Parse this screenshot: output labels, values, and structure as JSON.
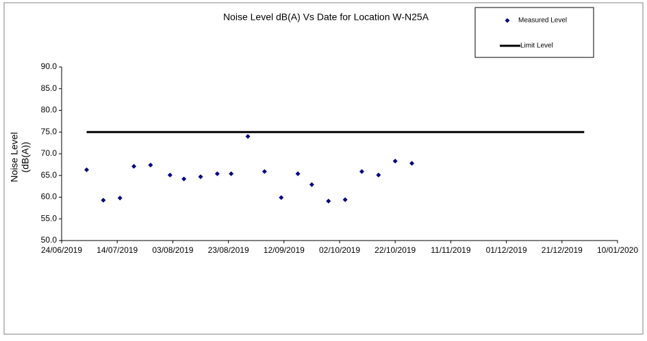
{
  "chart_data": {
    "type": "scatter",
    "title": "Noise Level dB(A) Vs Date for Location W-N25A",
    "y_label": [
      "Noise Level",
      "(dB(A))"
    ],
    "xlim": [
      "24/06/2019",
      "10/01/2020"
    ],
    "xticks": [
      "24/06/2019",
      "14/07/2019",
      "03/08/2019",
      "23/08/2019",
      "12/09/2019",
      "02/10/2019",
      "22/10/2019",
      "11/11/2019",
      "01/12/2019",
      "21/12/2019",
      "10/01/2020"
    ],
    "ylim": [
      50,
      90
    ],
    "yticks": [
      {
        "value": 50,
        "label": "50.0"
      },
      {
        "value": 55,
        "label": "55.0"
      },
      {
        "value": 60,
        "label": "60.0"
      },
      {
        "value": 65,
        "label": "65.0"
      },
      {
        "value": 70,
        "label": "70.0"
      },
      {
        "value": 75,
        "label": "75.0"
      },
      {
        "value": 80,
        "label": "80.0"
      },
      {
        "value": 85,
        "label": "85.0"
      },
      {
        "value": 90,
        "label": "90.0"
      }
    ],
    "legend": "top-right",
    "series": [
      {
        "name": "Measured Level",
        "color": "#000080",
        "mode": "markers",
        "x": [
          "03/07/2019",
          "09/07/2019",
          "15/07/2019",
          "20/07/2019",
          "26/07/2019",
          "02/08/2019",
          "07/08/2019",
          "13/08/2019",
          "19/08/2019",
          "24/08/2019",
          "30/08/2019",
          "05/09/2019",
          "11/09/2019",
          "17/09/2019",
          "22/09/2019",
          "28/09/2019",
          "04/10/2019",
          "10/10/2019",
          "16/10/2019",
          "22/10/2019",
          "28/10/2019"
        ],
        "values": [
          66.3,
          59.3,
          59.8,
          67.1,
          67.4,
          65.1,
          64.2,
          64.7,
          65.4,
          65.4,
          74.0,
          65.9,
          59.9,
          65.4,
          62.9,
          59.1,
          59.4,
          65.9,
          65.1,
          68.3,
          67.8
        ]
      },
      {
        "name": "Limit Level",
        "color": "#000000",
        "mode": "line",
        "x": [
          "03/07/2019",
          "29/12/2019"
        ],
        "values": [
          75,
          75
        ]
      }
    ]
  }
}
